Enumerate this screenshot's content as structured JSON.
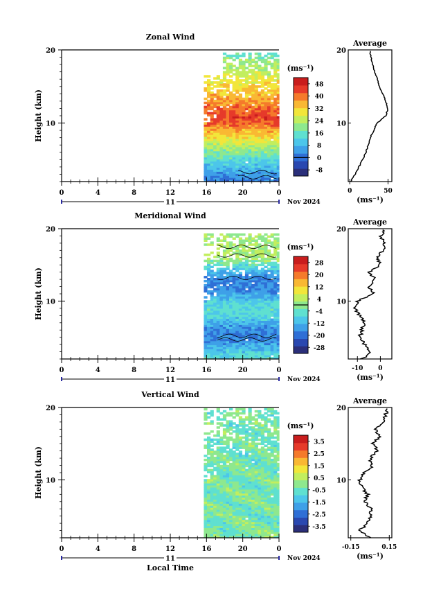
{
  "colors": {
    "scale": [
      "#2b2f7a",
      "#2a48b0",
      "#2f6fd6",
      "#3ea0e8",
      "#4cc6ea",
      "#5fe0d0",
      "#8ee88e",
      "#c2ee5e",
      "#f2e63a",
      "#f9b833",
      "#f57a2b",
      "#e63a2a",
      "#c91d1d"
    ],
    "zero_line": "#000000"
  },
  "x_axis": {
    "ticks": [
      "0",
      "4",
      "8",
      "12",
      "16",
      "20",
      "0"
    ],
    "day_label": "11",
    "date_label": "Nov 2024",
    "xlabel": "Local Time"
  },
  "chart_data": [
    {
      "type": "heatmap",
      "title": "Zonal Wind",
      "ylabel": "Height (km)",
      "yticks": [
        "20",
        "10"
      ],
      "ylim": [
        2,
        20
      ],
      "xlim": [
        0,
        24
      ],
      "data_start_hour": 15.7,
      "unit": "(ms⁻¹)",
      "colorbar_labels": [
        "48",
        "40",
        "32",
        "24",
        "16",
        "8",
        "0",
        "-8"
      ],
      "colorbar_range": [
        -12,
        52
      ],
      "zero_line_value": 0,
      "profile": {
        "title": "Average",
        "xticks": [
          "0",
          "50"
        ],
        "xlim": [
          -2,
          55
        ],
        "xlabel": "(ms⁻¹)",
        "heights": [
          2,
          3,
          4,
          5,
          6,
          7,
          8,
          9,
          10,
          11,
          12,
          13,
          14,
          15,
          16,
          17,
          18,
          19,
          20
        ],
        "values": [
          1,
          7,
          12,
          17,
          21,
          24,
          27,
          31,
          36,
          47,
          50,
          47,
          43,
          39,
          36,
          33,
          30,
          28,
          26
        ]
      },
      "field": {
        "base": [
          1,
          30,
          -5,
          45,
          10.5,
          -3
        ],
        "top": [
          20.5,
          12
        ]
      }
    },
    {
      "type": "heatmap",
      "title": "Meridional Wind",
      "ylabel": "Height (km)",
      "yticks": [
        "20",
        "10"
      ],
      "ylim": [
        2,
        20
      ],
      "xlim": [
        0,
        24
      ],
      "data_start_hour": 15.7,
      "unit": "(ms⁻¹)",
      "colorbar_labels": [
        "28",
        "20",
        "12",
        "4",
        "-4",
        "-12",
        "-20",
        "-28"
      ],
      "colorbar_range": [
        -32,
        32
      ],
      "zero_line_value": 0,
      "profile": {
        "title": "Average",
        "xticks": [
          "-10",
          "0"
        ],
        "xlim": [
          -14,
          5
        ],
        "xlabel": "(ms⁻¹)",
        "heights": [
          2,
          3,
          4,
          5,
          6,
          7,
          8,
          9,
          10,
          11,
          12,
          13,
          14,
          15,
          16,
          17,
          18,
          19,
          20
        ],
        "values": [
          -8,
          -4,
          -7,
          -9,
          -8,
          -7,
          -9,
          -11,
          -10,
          -3,
          -5,
          -2,
          -5,
          0,
          -1,
          1,
          2,
          0,
          2
        ]
      },
      "field": {
        "base": [
          1,
          -12,
          -20,
          8,
          9.5,
          -4
        ],
        "top": [
          20.5,
          -4
        ]
      }
    },
    {
      "type": "heatmap",
      "title": "Vertical Wind",
      "ylabel": "Height (km)",
      "yticks": [
        "20",
        "10"
      ],
      "ylim": [
        2,
        20
      ],
      "xlim": [
        0,
        24
      ],
      "data_start_hour": 15.7,
      "unit": "(ms⁻¹)",
      "colorbar_labels": [
        "3.5",
        "2.5",
        "1.5",
        "0.5",
        "-0.5",
        "-1.5",
        "-2.5",
        "-3.5"
      ],
      "colorbar_range": [
        -4,
        4
      ],
      "zero_line_value": null,
      "profile": {
        "title": "Average",
        "xticks": [
          "-0.15",
          "0.15"
        ],
        "xlim": [
          -0.17,
          0.17
        ],
        "xlabel": "(ms⁻¹)",
        "heights": [
          2,
          3,
          4,
          5,
          6,
          7,
          8,
          9,
          10,
          11,
          12,
          13,
          14,
          15,
          16,
          17,
          18,
          19,
          20
        ],
        "values": [
          0.0,
          -0.08,
          -0.02,
          0.0,
          0.01,
          -0.04,
          -0.02,
          -0.06,
          -0.08,
          -0.04,
          0.02,
          0.0,
          0.06,
          0.02,
          0.08,
          0.04,
          0.1,
          0.12,
          0.14
        ]
      },
      "field": {
        "base": [
          1,
          -0.6,
          -0.8,
          0.3,
          10,
          -0.3
        ],
        "top": [
          20.5,
          0.3
        ]
      }
    }
  ]
}
